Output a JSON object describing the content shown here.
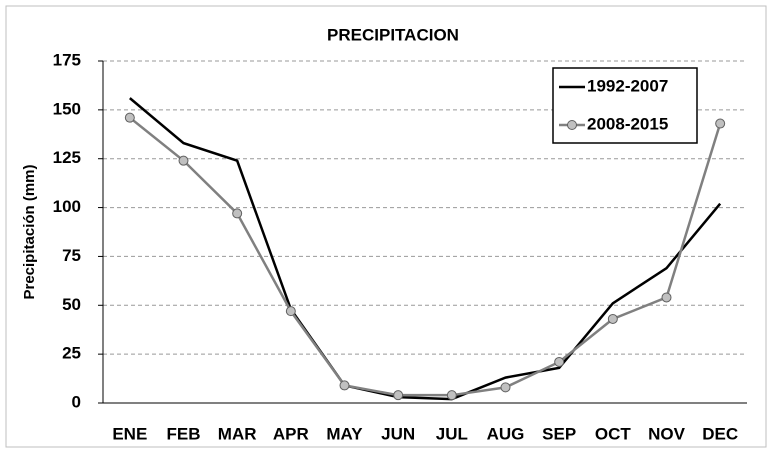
{
  "chart_data": {
    "type": "line",
    "title": "PRECIPITACION",
    "ylabel": "Precipitación (mm)",
    "categories": [
      "ENE",
      "FEB",
      "MAR",
      "APR",
      "MAY",
      "JUN",
      "JUL",
      "AUG",
      "SEP",
      "OCT",
      "NOV",
      "DEC"
    ],
    "series": [
      {
        "name": "1992-2007",
        "color": "#000000",
        "marker": false,
        "values": [
          156,
          133,
          124,
          48,
          9,
          3,
          2,
          13,
          18,
          51,
          69,
          102
        ]
      },
      {
        "name": "2008-2015",
        "color": "#808080",
        "marker": true,
        "values": [
          146,
          124,
          97,
          47,
          9,
          4,
          4,
          8,
          21,
          43,
          54,
          143
        ]
      }
    ],
    "ylim": [
      0,
      175
    ],
    "yticks": [
      0,
      25,
      50,
      75,
      100,
      125,
      150,
      175
    ],
    "grid": true,
    "legend": "top-right"
  }
}
